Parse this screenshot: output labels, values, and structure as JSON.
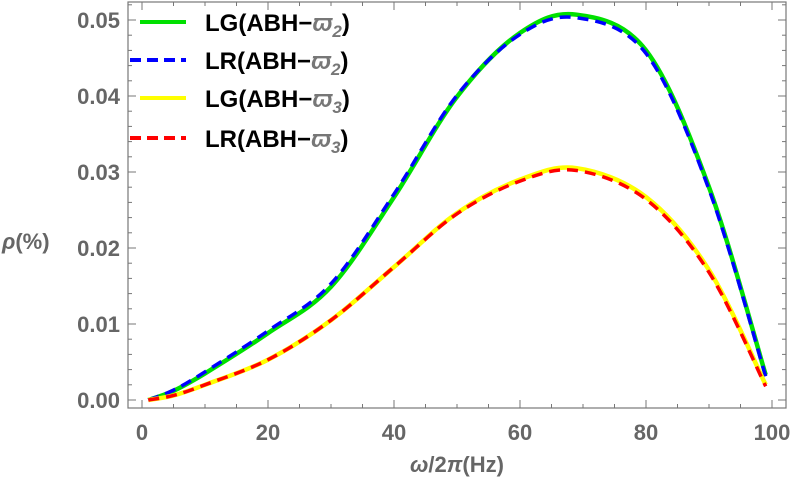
{
  "chart_data": {
    "type": "line",
    "xlabel": {
      "symbol": "ω",
      "rest": "/2",
      "pi": "π",
      "unit": "(Hz)"
    },
    "ylabel": {
      "symbol": "ρ",
      "unit": "(%)"
    },
    "xlim": [
      -2,
      102
    ],
    "ylim": [
      -0.001,
      0.0525
    ],
    "x_ticks": [
      0,
      20,
      40,
      60,
      80,
      100
    ],
    "x_tick_labels": [
      "0",
      "20",
      "40",
      "60",
      "80",
      "100"
    ],
    "y_ticks": [
      0,
      0.01,
      0.02,
      0.03,
      0.04,
      0.05
    ],
    "y_tick_labels": [
      "0.00",
      "0.01",
      "0.02",
      "0.03",
      "0.04",
      "0.05"
    ],
    "grid": false,
    "legend_position": "top-left",
    "x": [
      1,
      5,
      10,
      20,
      30,
      40,
      50,
      60,
      69,
      80,
      90,
      99
    ],
    "series": [
      {
        "legend": {
          "prefix": "LG(ABH−",
          "symbol": "ϖ",
          "sub": "2",
          "suffix": ")"
        },
        "color": "#00e000",
        "dash": "solid",
        "values": [
          0,
          0.0012,
          0.0035,
          0.0088,
          0.0149,
          0.0267,
          0.0399,
          0.0483,
          0.0507,
          0.046,
          0.028,
          0.0033
        ]
      },
      {
        "legend": {
          "prefix": "LR(ABH−",
          "symbol": "ϖ",
          "sub": "2",
          "suffix": ")"
        },
        "color": "#0000ff",
        "dash": "dashed",
        "values": [
          0,
          0.0013,
          0.0037,
          0.0091,
          0.0153,
          0.0271,
          0.0401,
          0.0481,
          0.0503,
          0.0456,
          0.0277,
          0.0031
        ]
      },
      {
        "legend": {
          "prefix": "LG(ABH−",
          "symbol": "ϖ",
          "sub": "3",
          "suffix": ")"
        },
        "color": "#ffff00",
        "dash": "solid",
        "values": [
          0,
          0.0006,
          0.002,
          0.0053,
          0.0105,
          0.0175,
          0.0246,
          0.029,
          0.0305,
          0.0267,
          0.0171,
          0.002
        ]
      },
      {
        "legend": {
          "prefix": "LR(ABH−",
          "symbol": "ϖ",
          "sub": "3",
          "suffix": ")"
        },
        "color": "#ff0000",
        "dash": "dashed",
        "values": [
          0,
          0.0006,
          0.002,
          0.0053,
          0.0105,
          0.0175,
          0.0245,
          0.0288,
          0.0302,
          0.0264,
          0.0168,
          0.0018
        ]
      }
    ]
  }
}
